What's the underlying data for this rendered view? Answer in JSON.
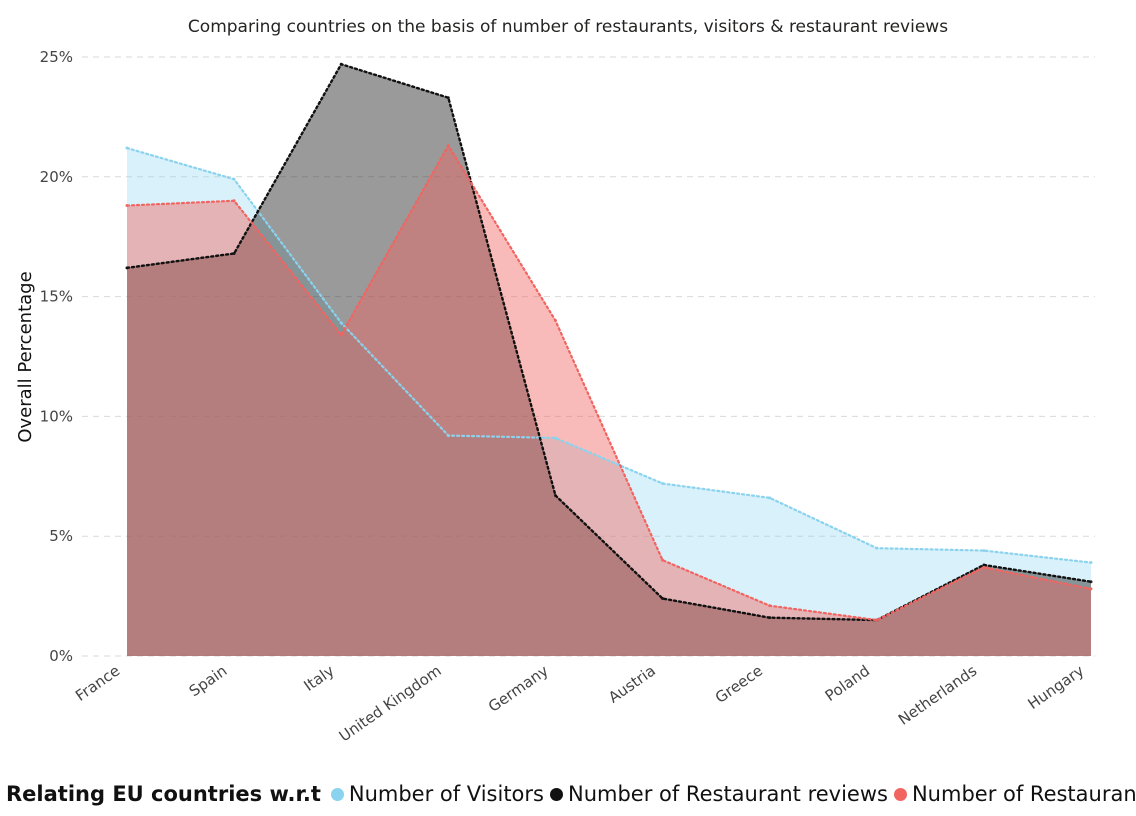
{
  "chart_data": {
    "type": "area",
    "title": "Comparing countries on the basis of number of restaurants, visitors & restaurant reviews",
    "xlabel": "",
    "ylabel": "Overall Percentage",
    "ylim": [
      0,
      25
    ],
    "yticks": [
      "0%",
      "5%",
      "10%",
      "15%",
      "20%",
      "25%"
    ],
    "grid": true,
    "legend_position": "bottom",
    "legend_title": "Relating EU countries w.r.t",
    "categories": [
      "France",
      "Spain",
      "Italy",
      "United Kingdom",
      "Germany",
      "Austria",
      "Greece",
      "Poland",
      "Netherlands",
      "Hungary"
    ],
    "series": [
      {
        "name": "Number of Visitors",
        "color": "#8ad3ee",
        "values": [
          21.2,
          19.9,
          13.9,
          9.2,
          9.1,
          7.2,
          6.6,
          4.5,
          4.4,
          3.9
        ]
      },
      {
        "name": "Number of Restaurant reviews",
        "color": "#111111",
        "values": [
          16.2,
          16.8,
          24.7,
          23.3,
          6.7,
          2.4,
          1.6,
          1.5,
          3.8,
          3.1
        ]
      },
      {
        "name": "Number of Restaurants",
        "color": "#f26460",
        "values": [
          18.8,
          19.0,
          13.4,
          21.3,
          14.0,
          4.0,
          2.1,
          1.5,
          3.7,
          2.8
        ]
      }
    ]
  }
}
